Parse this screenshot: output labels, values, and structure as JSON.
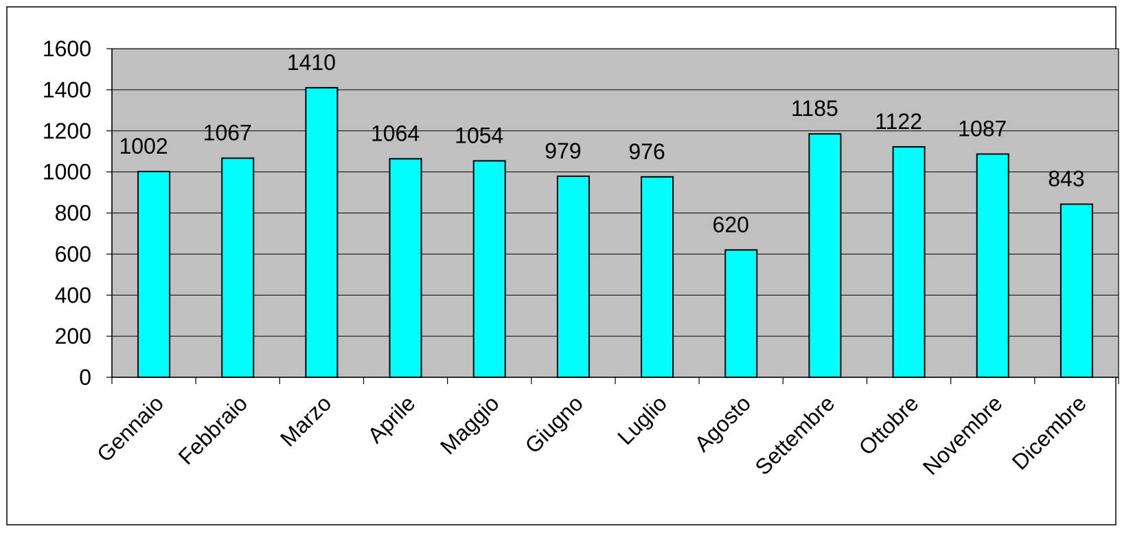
{
  "chart_data": {
    "type": "bar",
    "title": "",
    "xlabel": "",
    "ylabel": "",
    "categories": [
      "Gennaio",
      "Febbraio",
      "Marzo",
      "Aprile",
      "Maggio",
      "Giugno",
      "Luglio",
      "Agosto",
      "Settembre",
      "Ottobre",
      "Novembre",
      "Dicembre"
    ],
    "values": [
      1002,
      1067,
      1410,
      1064,
      1054,
      979,
      976,
      620,
      1185,
      1122,
      1087,
      843
    ],
    "ylim": [
      0,
      1600
    ],
    "yticks": [
      0,
      200,
      400,
      600,
      800,
      1000,
      1200,
      1400,
      1600
    ],
    "grid": true,
    "legend": "none",
    "colors": {
      "bar_fill": "#00FFFF",
      "bar_stroke": "#000000",
      "plot_background": "#C0C0C0",
      "gridline": "#000000",
      "text": "#000000"
    }
  }
}
